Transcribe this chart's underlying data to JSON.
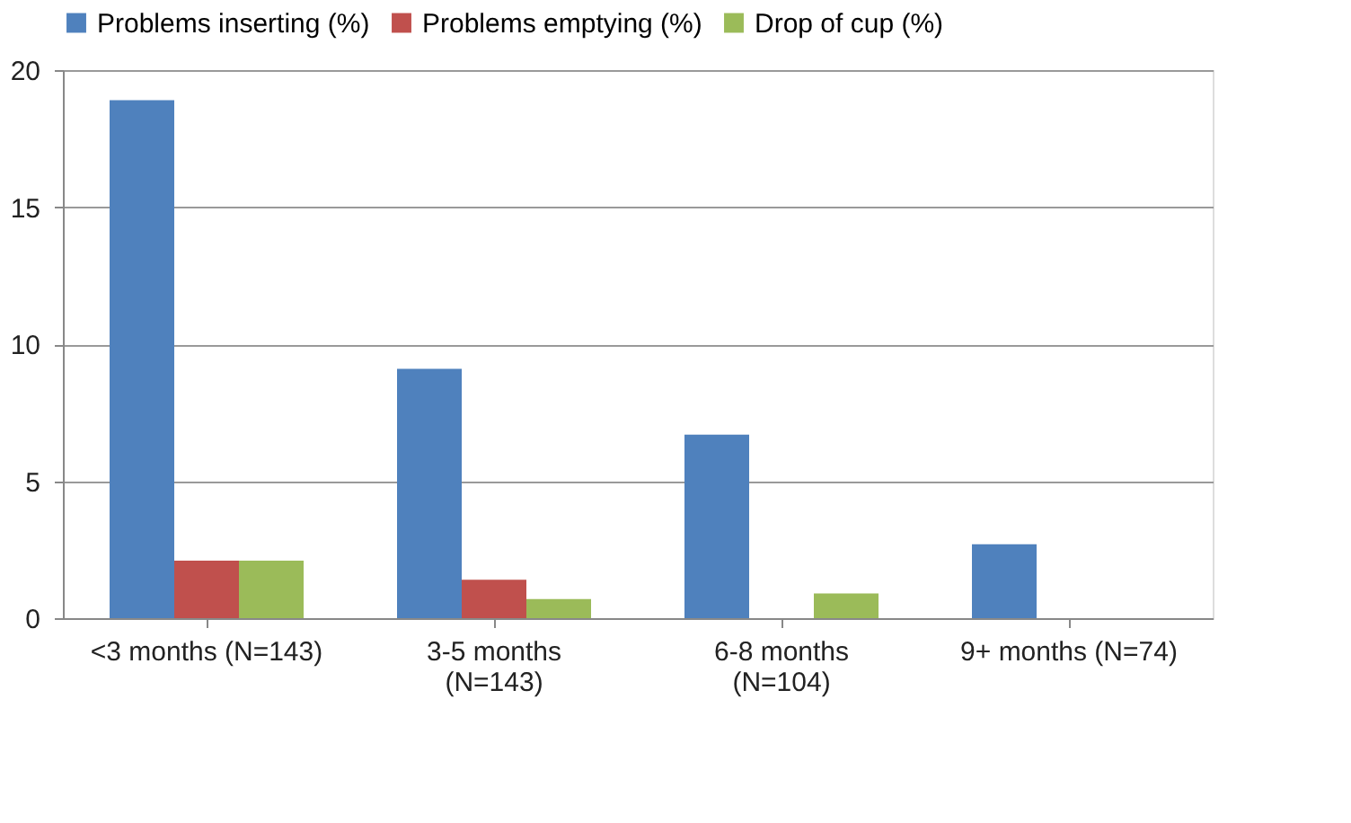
{
  "chart_data": {
    "type": "bar",
    "categories": [
      "<3  months (N=143)",
      "3-5 months\n(N=143)",
      "6-8 months\n(N=104)",
      "9+ months (N=74)"
    ],
    "series": [
      {
        "name": "Problems inserting (%)",
        "color": "#4f81bd",
        "values": [
          18.9,
          9.1,
          6.7,
          2.7
        ]
      },
      {
        "name": "Problems emptying (%)",
        "color": "#c0504d",
        "values": [
          2.1,
          1.4,
          0,
          0
        ]
      },
      {
        "name": "Drop of cup (%)",
        "color": "#9bbb59",
        "values": [
          2.1,
          0.7,
          0.9,
          0
        ]
      }
    ],
    "ylim": [
      0,
      20
    ],
    "yticks": [
      0,
      5,
      10,
      15,
      20
    ],
    "grid": "y",
    "legend": "top"
  }
}
